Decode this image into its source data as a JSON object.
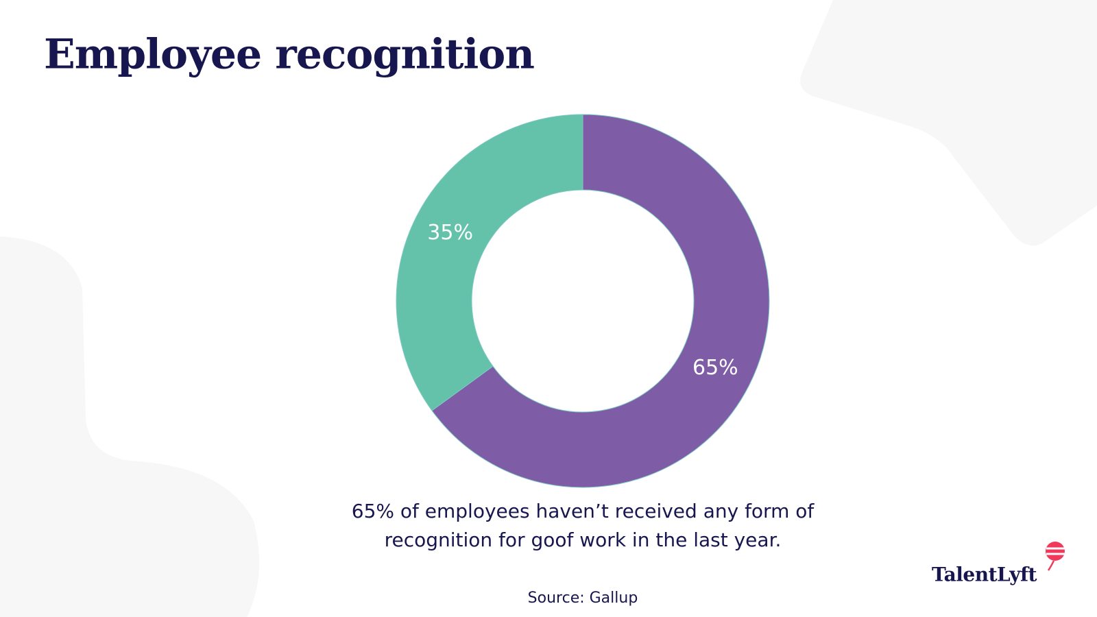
{
  "chart_data": {
    "type": "pie",
    "title": "Employee recognition",
    "values": [
      65,
      35
    ],
    "value_labels": [
      "65%",
      "35%"
    ],
    "colors": [
      "#7e5ca6",
      "#64c1aa"
    ],
    "donut": true,
    "caption": [
      "65% of employees haven’t received any form of",
      "recognition for goof work in the last year."
    ],
    "source": "Source: Gallup",
    "logo": "TalentLyft"
  }
}
